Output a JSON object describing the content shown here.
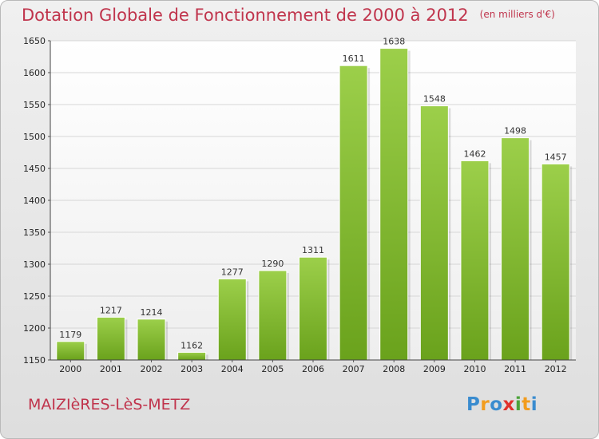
{
  "header": {
    "title": "Dotation Globale de Fonctionnement de 2000 à 2012",
    "unit": "(en milliers d'€)"
  },
  "footer": {
    "commune": "MAIZIèRES-LèS-METZ",
    "logo": [
      "P",
      "r",
      "o",
      "x",
      "i",
      "t",
      "i"
    ]
  },
  "colors": {
    "bar_light": "#9ccf4a",
    "bar_dark": "#6aa21c",
    "title": "#c0344c",
    "logo": [
      "#3a8ccf",
      "#f29c1e",
      "#3a8ccf",
      "#e0312c",
      "#4ca33a",
      "#f29c1e",
      "#3a8ccf"
    ]
  },
  "chart_data": {
    "type": "bar",
    "title": "Dotation Globale de Fonctionnement de 2000 à 2012",
    "subtitle": "(en milliers d'€)",
    "xlabel": "",
    "ylabel": "",
    "categories": [
      "2000",
      "2001",
      "2002",
      "2003",
      "2004",
      "2005",
      "2006",
      "2007",
      "2008",
      "2009",
      "2010",
      "2011",
      "2012"
    ],
    "values": [
      1179,
      1217,
      1214,
      1162,
      1277,
      1290,
      1311,
      1611,
      1638,
      1548,
      1462,
      1498,
      1457
    ],
    "ylim": [
      1150,
      1650
    ],
    "yticks": [
      1150,
      1200,
      1250,
      1300,
      1350,
      1400,
      1450,
      1500,
      1550,
      1600,
      1650
    ],
    "grid": true,
    "legend": "none"
  }
}
